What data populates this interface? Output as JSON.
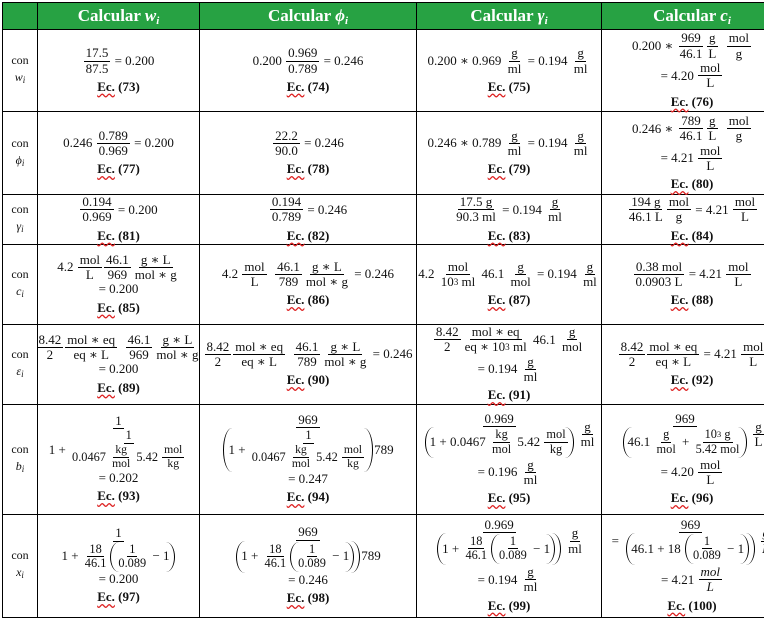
{
  "header": {
    "corner": "",
    "columns": [
      {
        "prefix": "Calcular ",
        "var": "w",
        "sub": "i"
      },
      {
        "prefix": "Calcular ",
        "var": "ϕ",
        "sub": "i"
      },
      {
        "prefix": "Calcular ",
        "var": "γ",
        "sub": "i"
      },
      {
        "prefix": "Calcular ",
        "var": "c",
        "sub": "i"
      }
    ]
  },
  "eq_word": "Ec.",
  "colors": {
    "header_bg": "#27a243",
    "header_text": "#ffffff",
    "spell_underline": "#dd2222"
  },
  "rows": [
    {
      "label": {
        "con": "con",
        "var": "w",
        "sub": "i"
      },
      "cells": [
        {
          "lines": [
            [
              {
                "f": [
                  "17.5",
                  "87.5"
                ]
              },
              " = 0.200"
            ]
          ],
          "eq": "(73)"
        },
        {
          "lines": [
            [
              "0.200 ",
              {
                "f": [
                  "0.969",
                  "0.789"
                ]
              },
              " = 0.246"
            ]
          ],
          "eq": "(74)"
        },
        {
          "lines": [
            [
              "0.200 ∗ 0.969 ",
              {
                "f": [
                  "g",
                  "ml"
                ]
              },
              " = 0.194 ",
              {
                "f": [
                  "g",
                  "ml"
                ]
              }
            ]
          ],
          "eq": "(75)"
        },
        {
          "lines": [
            [
              "0.200 ∗ ",
              {
                "f": [
                  "969",
                  "46.1"
                ]
              },
              {
                "f": [
                  "g",
                  "L"
                ]
              },
              "  ",
              {
                "f": [
                  "mol",
                  "g"
                ]
              }
            ],
            [
              "= 4.20 ",
              {
                "f": [
                  "mol",
                  "L"
                ]
              }
            ]
          ],
          "eq": "(76)"
        }
      ]
    },
    {
      "label": {
        "con": "con",
        "var": "ϕ",
        "sub": "i"
      },
      "cells": [
        {
          "lines": [
            [
              "0.246 ",
              {
                "f": [
                  "0.789",
                  "0.969"
                ]
              },
              " = 0.200"
            ]
          ],
          "eq": "(77)"
        },
        {
          "lines": [
            [
              {
                "f": [
                  "22.2",
                  "90.0"
                ]
              },
              " = 0.246"
            ]
          ],
          "eq": "(78)"
        },
        {
          "lines": [
            [
              "0.246 ∗ 0.789 ",
              {
                "f": [
                  "g",
                  "ml"
                ]
              },
              " = 0.194 ",
              {
                "f": [
                  "g",
                  "ml"
                ]
              }
            ]
          ],
          "eq": "(79)"
        },
        {
          "lines": [
            [
              "0.246 ∗ ",
              {
                "f": [
                  "789",
                  "46.1"
                ]
              },
              {
                "f": [
                  "g",
                  "L"
                ]
              },
              "  ",
              {
                "f": [
                  "mol",
                  "g"
                ]
              }
            ],
            [
              "= 4.21 ",
              {
                "f": [
                  "mol",
                  "L"
                ]
              }
            ]
          ],
          "eq": "(80)"
        }
      ]
    },
    {
      "label": {
        "con": "con",
        "var": "γ",
        "sub": "i"
      },
      "cells": [
        {
          "lines": [
            [
              {
                "f": [
                  "0.194",
                  "0.969"
                ]
              },
              " = 0.200"
            ]
          ],
          "eq": "(81)"
        },
        {
          "lines": [
            [
              {
                "f": [
                  "0.194",
                  "0.789"
                ]
              },
              " = 0.246"
            ]
          ],
          "eq": "(82)"
        },
        {
          "lines": [
            [
              {
                "f": [
                  "17.5 g",
                  "90.3 ml"
                ]
              },
              " = 0.194 ",
              {
                "f": [
                  "g",
                  "ml"
                ]
              }
            ]
          ],
          "eq": "(83)"
        },
        {
          "lines": [
            [
              {
                "f": [
                  "194 g",
                  "46.1 L"
                ]
              },
              {
                "f": [
                  "mol",
                  "g"
                ]
              },
              " = 4.21 ",
              {
                "f": [
                  "mol",
                  "L"
                ]
              }
            ]
          ],
          "eq": "(84)"
        }
      ]
    },
    {
      "label": {
        "con": "con",
        "var": "c",
        "sub": "i"
      },
      "cells": [
        {
          "lines": [
            [
              "4.2 ",
              {
                "f": [
                  "mol",
                  "L"
                ]
              },
              {
                "f": [
                  "46.1",
                  "969"
                ]
              },
              {
                "f": [
                  "g ∗ L",
                  "mol ∗ g"
                ]
              }
            ],
            [
              "= 0.200"
            ]
          ],
          "eq": "(85)"
        },
        {
          "lines": [
            [
              "4.2 ",
              {
                "f": [
                  "mol",
                  "L"
                ]
              },
              "  ",
              {
                "f": [
                  "46.1",
                  "789"
                ]
              },
              {
                "f": [
                  "g ∗ L",
                  "mol ∗ g"
                ]
              },
              " = 0.246"
            ]
          ],
          "eq": "(86)"
        },
        {
          "lines": [
            [
              "4.2 ",
              {
                "f": [
                  "mol",
                  [
                    "10",
                    {
                      "sup": "3"
                    },
                    " ml"
                  ]
                ]
              },
              " 46.1 ",
              {
                "f": [
                  "g",
                  "mol"
                ]
              },
              " = 0.194 ",
              {
                "f": [
                  "g",
                  "ml"
                ]
              }
            ]
          ],
          "eq": "(87)"
        },
        {
          "lines": [
            [
              {
                "f": [
                  "0.38 mol",
                  "0.0903 L"
                ]
              },
              " = 4.21 ",
              {
                "f": [
                  "mol",
                  "L"
                ]
              }
            ]
          ],
          "eq": "(88)"
        }
      ]
    },
    {
      "label": {
        "con": "con",
        "var": "ε",
        "sub": "i"
      },
      "cells": [
        {
          "lines": [
            [
              {
                "f": [
                  "8.42",
                  "2"
                ]
              },
              {
                "f": [
                  "mol ∗ eq",
                  "eq ∗ L"
                ]
              },
              "  ",
              {
                "f": [
                  "46.1",
                  "969"
                ]
              },
              {
                "f": [
                  "g ∗ L",
                  "mol ∗ g"
                ]
              }
            ],
            [
              "= 0.200"
            ]
          ],
          "eq": "(89)"
        },
        {
          "lines": [
            [
              {
                "f": [
                  "8.42",
                  "2"
                ]
              },
              {
                "f": [
                  "mol ∗ eq",
                  "eq ∗ L"
                ]
              },
              "  ",
              {
                "f": [
                  "46.1",
                  "789"
                ]
              },
              {
                "f": [
                  "g ∗ L",
                  "mol ∗ g"
                ]
              },
              " = 0.246"
            ]
          ],
          "eq": "(90)"
        },
        {
          "lines": [
            [
              {
                "f": [
                  "8.42",
                  "2"
                ]
              },
              {
                "f": [
                  "mol ∗ eq",
                  [
                    "eq ∗ 10",
                    {
                      "sup": "3"
                    },
                    " ml"
                  ]
                ]
              },
              " 46.1 ",
              {
                "f": [
                  "g",
                  "mol"
                ]
              }
            ],
            [
              "= 0.194 ",
              {
                "f": [
                  "g",
                  "ml"
                ]
              }
            ]
          ],
          "eq": "(91)"
        },
        {
          "lines": [
            [
              {
                "f": [
                  "8.42",
                  "2"
                ]
              },
              {
                "f": [
                  "mol ∗ eq",
                  "eq ∗ L"
                ]
              },
              " = 4.21 ",
              {
                "f": [
                  "mol",
                  "L"
                ]
              }
            ]
          ],
          "eq": "(92)"
        }
      ]
    },
    {
      "label": {
        "con": "con",
        "var": "b",
        "sub": "i"
      },
      "cells": [
        {
          "lines": [
            [
              {
                "f": [
                  "1",
                  [
                    "1 + ",
                    {
                      "f": [
                        "1",
                        [
                          "0.0467 ",
                          {
                            "f": [
                              "kg",
                              "mol"
                            ]
                          },
                          " 5.42 ",
                          {
                            "f": [
                              "mol",
                              "kg"
                            ]
                          }
                        ]
                      ]
                    }
                  ]
                ]
              }
            ],
            [
              "= 0.202"
            ]
          ],
          "eq": "(93)"
        },
        {
          "lines": [
            [
              {
                "f": [
                  "969",
                  [
                    {
                      "p": [
                        "1 + ",
                        {
                          "f": [
                            "1",
                            [
                              "0.0467 ",
                              {
                                "f": [
                                  "kg",
                                  "mol"
                                ]
                              },
                              " 5.42 ",
                              {
                                "f": [
                                  "mol",
                                  "kg"
                                ]
                              }
                            ]
                          ]
                        }
                      ]
                    },
                    "789"
                  ]
                ]
              }
            ],
            [
              "= 0.247"
            ]
          ],
          "eq": "(94)"
        },
        {
          "lines": [
            [
              {
                "f": [
                  "0.969",
                  [
                    {
                      "p": [
                        "1 + 0.0467 ",
                        {
                          "f": [
                            "kg",
                            "mol"
                          ]
                        },
                        " 5.42 ",
                        {
                          "f": [
                            "mol",
                            "kg"
                          ]
                        }
                      ]
                    }
                  ]
                ]
              },
              {
                "f": [
                  "g",
                  "ml"
                ]
              }
            ],
            [
              "= 0.196 ",
              {
                "f": [
                  "g",
                  "ml"
                ]
              }
            ]
          ],
          "eq": "(95)"
        },
        {
          "lines": [
            [
              {
                "f": [
                  "969",
                  [
                    {
                      "p": [
                        "46.1 ",
                        {
                          "f": [
                            "g",
                            "mol"
                          ]
                        },
                        " + ",
                        {
                          "f": [
                            [
                              "10",
                              {
                                "sup": "3"
                              },
                              " g"
                            ],
                            "5.42 mol"
                          ]
                        }
                      ]
                    }
                  ]
                ]
              },
              {
                "f": [
                  "g",
                  "L"
                ]
              }
            ],
            [
              "= 4.20 ",
              {
                "f": [
                  "mol",
                  "L"
                ]
              }
            ]
          ],
          "eq": "(96)"
        }
      ]
    },
    {
      "label": {
        "con": "con",
        "var": "x",
        "sub": "i"
      },
      "cells": [
        {
          "lines": [
            [
              {
                "f": [
                  "1",
                  [
                    "1 + ",
                    {
                      "f": [
                        "18",
                        "46.1"
                      ]
                    },
                    {
                      "p": [
                        {
                          "f": [
                            "1",
                            "0.089"
                          ]
                        },
                        " − 1"
                      ]
                    }
                  ]
                ]
              }
            ],
            [
              "= 0.200"
            ]
          ],
          "eq": "(97)"
        },
        {
          "lines": [
            [
              {
                "f": [
                  "969",
                  [
                    {
                      "p": [
                        "1 + ",
                        {
                          "f": [
                            "18",
                            "46.1"
                          ]
                        },
                        {
                          "p": [
                            {
                              "f": [
                                "1",
                                "0.089"
                              ]
                            },
                            " − 1"
                          ]
                        }
                      ]
                    },
                    "789"
                  ]
                ]
              }
            ],
            [
              "= 0.246"
            ]
          ],
          "eq": "(98)"
        },
        {
          "lines": [
            [
              {
                "f": [
                  "0.969",
                  [
                    {
                      "p": [
                        "1 + ",
                        {
                          "f": [
                            "18",
                            "46.1"
                          ]
                        },
                        {
                          "p": [
                            {
                              "f": [
                                "1",
                                "0.089"
                              ]
                            },
                            " − 1"
                          ]
                        }
                      ]
                    }
                  ]
                ]
              },
              {
                "f": [
                  "g",
                  "ml"
                ]
              }
            ],
            [
              "= 0.194 ",
              {
                "f": [
                  "g",
                  "ml"
                ]
              }
            ]
          ],
          "eq": "(99)"
        },
        {
          "lines": [
            [
              "= ",
              {
                "f": [
                  "969",
                  [
                    {
                      "p": [
                        "46.1 + 18 ",
                        {
                          "p": [
                            {
                              "f": [
                                "1",
                                "0.089"
                              ]
                            },
                            " − 1"
                          ]
                        }
                      ]
                    }
                  ]
                ]
              },
              {
                "f": [
                  {
                    "i": "g"
                  },
                  {
                    "i": "L"
                  }
                ]
              }
            ],
            [
              "= 4.21 ",
              {
                "f": [
                  {
                    "i": "mol"
                  },
                  {
                    "i": "L"
                  }
                ]
              }
            ]
          ],
          "eq": "(100)"
        }
      ]
    }
  ]
}
